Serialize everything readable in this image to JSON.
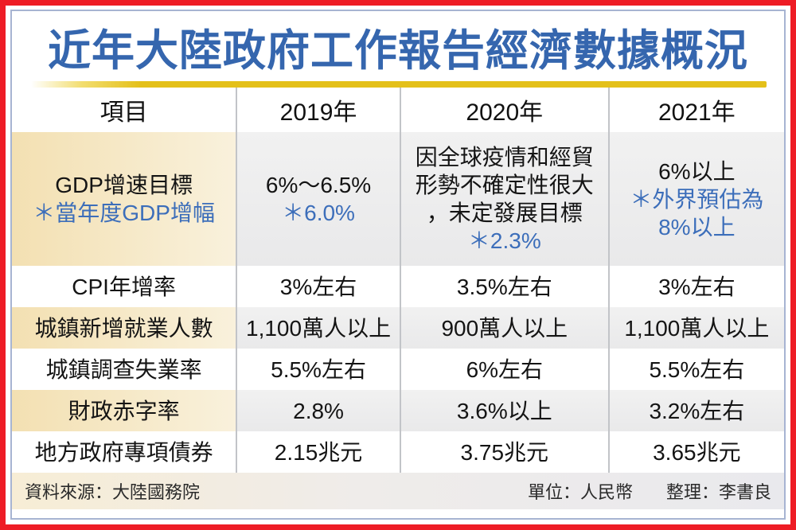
{
  "title": "近年大陸政府工作報告經濟數據概況",
  "colors": {
    "frame_red": "#ee1c25",
    "title_blue": "#3566ae",
    "note_blue": "#3c6eba",
    "gold_rule": "#e4c019",
    "label_cream": "#f3e0b2",
    "shaded_grey": "#ececec"
  },
  "table": {
    "headers": [
      "項目",
      "2019年",
      "2020年",
      "2021年"
    ],
    "rows": [
      {
        "shaded": true,
        "tall": true,
        "cells": [
          {
            "lines": [
              {
                "t": "GDP增速目標"
              },
              {
                "t": "＊當年度GDP增幅",
                "blue": true
              }
            ]
          },
          {
            "lines": [
              {
                "t": "6%～6.5%"
              },
              {
                "t": "＊6.0%",
                "blue": true
              }
            ]
          },
          {
            "lines": [
              {
                "t": "因全球疫情和經貿"
              },
              {
                "t": "形勢不確定性很大"
              },
              {
                "t": "，未定發展目標"
              },
              {
                "t": "＊2.3%",
                "blue": true
              }
            ]
          },
          {
            "lines": [
              {
                "t": "6%以上"
              },
              {
                "t": "＊外界預估為",
                "blue": true
              },
              {
                "t": "8%以上",
                "blue": true
              }
            ]
          }
        ]
      },
      {
        "shaded": false,
        "cells": [
          {
            "lines": [
              {
                "t": "CPI年增率"
              }
            ]
          },
          {
            "lines": [
              {
                "t": "3%左右"
              }
            ]
          },
          {
            "lines": [
              {
                "t": "3.5%左右"
              }
            ]
          },
          {
            "lines": [
              {
                "t": "3%左右"
              }
            ]
          }
        ]
      },
      {
        "shaded": true,
        "cells": [
          {
            "lines": [
              {
                "t": "城鎮新增就業人數"
              }
            ]
          },
          {
            "lines": [
              {
                "t": "1,100萬人以上"
              }
            ]
          },
          {
            "lines": [
              {
                "t": "900萬人以上"
              }
            ]
          },
          {
            "lines": [
              {
                "t": "1,100萬人以上"
              }
            ]
          }
        ]
      },
      {
        "shaded": false,
        "cells": [
          {
            "lines": [
              {
                "t": "城鎮調查失業率"
              }
            ]
          },
          {
            "lines": [
              {
                "t": "5.5%左右"
              }
            ]
          },
          {
            "lines": [
              {
                "t": "6%左右"
              }
            ]
          },
          {
            "lines": [
              {
                "t": "5.5%左右"
              }
            ]
          }
        ]
      },
      {
        "shaded": true,
        "cells": [
          {
            "lines": [
              {
                "t": "財政赤字率"
              }
            ]
          },
          {
            "lines": [
              {
                "t": "2.8%"
              }
            ]
          },
          {
            "lines": [
              {
                "t": "3.6%以上"
              }
            ]
          },
          {
            "lines": [
              {
                "t": "3.2%左右"
              }
            ]
          }
        ]
      },
      {
        "shaded": false,
        "cells": [
          {
            "lines": [
              {
                "t": "地方政府專項債券"
              }
            ]
          },
          {
            "lines": [
              {
                "t": "2.15兆元"
              }
            ]
          },
          {
            "lines": [
              {
                "t": "3.75兆元"
              }
            ]
          },
          {
            "lines": [
              {
                "t": "3.65兆元"
              }
            ]
          }
        ]
      }
    ]
  },
  "footer": {
    "source": "資料來源：大陸國務院",
    "unit": "單位：人民幣",
    "compiler": "整理：李書良"
  },
  "chart_data": {
    "type": "table",
    "title": "近年大陸政府工作報告經濟數據概況",
    "columns": [
      "項目",
      "2019年",
      "2020年",
      "2021年"
    ],
    "rows": [
      [
        "GDP增速目標 ＊當年度GDP增幅",
        "6%～6.5% ＊6.0%",
        "因全球疫情和經貿形勢不確定性很大，未定發展目標 ＊2.3%",
        "6%以上 ＊外界預估為8%以上"
      ],
      [
        "CPI年增率",
        "3%左右",
        "3.5%左右",
        "3%左右"
      ],
      [
        "城鎮新增就業人數",
        "1,100萬人以上",
        "900萬人以上",
        "1,100萬人以上"
      ],
      [
        "城鎮調查失業率",
        "5.5%左右",
        "6%左右",
        "5.5%左右"
      ],
      [
        "財政赤字率",
        "2.8%",
        "3.6%以上",
        "3.2%左右"
      ],
      [
        "地方政府專項債券",
        "2.15兆元",
        "3.75兆元",
        "3.65兆元"
      ]
    ],
    "footnotes": [
      "資料來源：大陸國務院",
      "單位：人民幣",
      "整理：李書良"
    ]
  }
}
